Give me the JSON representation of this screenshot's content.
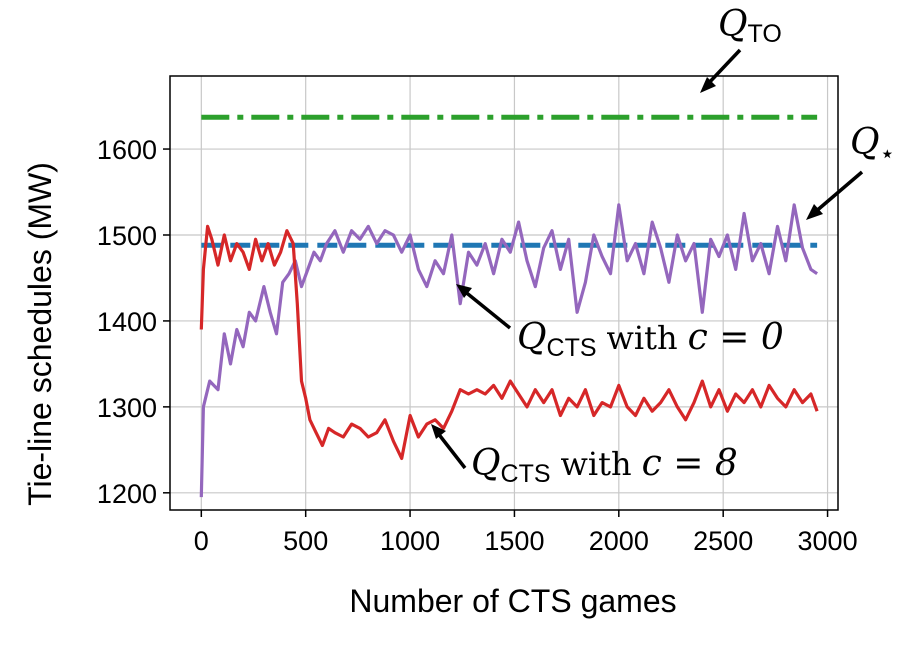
{
  "chart_data": {
    "type": "line",
    "xlabel": "Number of CTS games",
    "ylabel": "Tie-line schedules (MW)",
    "xlim": [
      -150,
      3050
    ],
    "ylim": [
      1180,
      1685
    ],
    "xticks": [
      0,
      500,
      1000,
      1500,
      2000,
      2500,
      3000
    ],
    "yticks": [
      1200,
      1300,
      1400,
      1500,
      1600
    ],
    "grid": true,
    "reference_lines": [
      {
        "name": "Q_TO",
        "y": 1637,
        "x_range": [
          0,
          2950
        ],
        "color": "#2ca02c",
        "style": "dash-dot"
      },
      {
        "name": "Q_star",
        "y": 1488,
        "x_range": [
          0,
          2950
        ],
        "color": "#1f77b4",
        "style": "dashed"
      }
    ],
    "series": [
      {
        "name": "Q_CTS with c = 0",
        "color": "#9467bd",
        "x": [
          0,
          10,
          40,
          80,
          110,
          140,
          170,
          200,
          230,
          260,
          300,
          330,
          360,
          390,
          420,
          450,
          480,
          510,
          540,
          570,
          600,
          640,
          680,
          720,
          760,
          800,
          840,
          880,
          920,
          960,
          1000,
          1040,
          1080,
          1120,
          1160,
          1200,
          1240,
          1280,
          1320,
          1360,
          1400,
          1440,
          1480,
          1520,
          1560,
          1600,
          1640,
          1680,
          1720,
          1760,
          1800,
          1840,
          1880,
          1920,
          1960,
          2000,
          2040,
          2080,
          2120,
          2160,
          2200,
          2240,
          2280,
          2320,
          2360,
          2400,
          2440,
          2480,
          2520,
          2560,
          2600,
          2640,
          2680,
          2720,
          2760,
          2800,
          2840,
          2880,
          2920,
          2950
        ],
        "values": [
          1195,
          1300,
          1330,
          1320,
          1385,
          1350,
          1390,
          1370,
          1410,
          1400,
          1440,
          1410,
          1385,
          1445,
          1455,
          1470,
          1440,
          1460,
          1480,
          1470,
          1490,
          1505,
          1480,
          1505,
          1495,
          1510,
          1490,
          1505,
          1500,
          1480,
          1500,
          1460,
          1440,
          1470,
          1455,
          1500,
          1420,
          1480,
          1465,
          1490,
          1455,
          1495,
          1480,
          1515,
          1470,
          1440,
          1485,
          1505,
          1460,
          1495,
          1410,
          1445,
          1500,
          1475,
          1455,
          1535,
          1470,
          1490,
          1455,
          1515,
          1485,
          1445,
          1500,
          1470,
          1490,
          1410,
          1495,
          1475,
          1500,
          1460,
          1525,
          1470,
          1490,
          1455,
          1510,
          1470,
          1535,
          1485,
          1460,
          1455
        ]
      },
      {
        "name": "Q_CTS with c = 8",
        "color": "#d62728",
        "x": [
          0,
          10,
          30,
          50,
          80,
          110,
          140,
          170,
          200,
          230,
          260,
          290,
          320,
          350,
          380,
          410,
          440,
          460,
          480,
          500,
          520,
          550,
          580,
          610,
          640,
          680,
          720,
          760,
          800,
          840,
          880,
          920,
          960,
          1000,
          1040,
          1080,
          1120,
          1160,
          1200,
          1240,
          1280,
          1320,
          1360,
          1400,
          1440,
          1480,
          1520,
          1560,
          1600,
          1640,
          1680,
          1720,
          1760,
          1800,
          1840,
          1880,
          1920,
          1960,
          2000,
          2040,
          2080,
          2120,
          2160,
          2200,
          2240,
          2280,
          2320,
          2360,
          2400,
          2440,
          2480,
          2520,
          2560,
          2600,
          2640,
          2680,
          2720,
          2760,
          2800,
          2840,
          2880,
          2920,
          2950
        ],
        "values": [
          1390,
          1460,
          1510,
          1495,
          1465,
          1500,
          1470,
          1490,
          1480,
          1460,
          1495,
          1470,
          1490,
          1465,
          1480,
          1505,
          1490,
          1420,
          1330,
          1310,
          1285,
          1270,
          1255,
          1275,
          1270,
          1265,
          1280,
          1275,
          1265,
          1270,
          1285,
          1260,
          1240,
          1290,
          1265,
          1280,
          1285,
          1275,
          1295,
          1320,
          1315,
          1320,
          1315,
          1325,
          1310,
          1330,
          1315,
          1300,
          1320,
          1305,
          1320,
          1290,
          1310,
          1300,
          1320,
          1290,
          1305,
          1300,
          1325,
          1300,
          1290,
          1310,
          1295,
          1305,
          1320,
          1300,
          1285,
          1305,
          1330,
          1300,
          1320,
          1295,
          1315,
          1305,
          1320,
          1300,
          1325,
          1310,
          1300,
          1320,
          1305,
          1315,
          1295
        ]
      }
    ],
    "annotations": [
      {
        "base": "Q",
        "sub": "TO",
        "suffix": ""
      },
      {
        "base": "Q",
        "sub": "⋆",
        "suffix": ""
      },
      {
        "base": "Q",
        "sub": "CTS",
        "word": "with",
        "math": "c = 0"
      },
      {
        "base": "Q",
        "sub": "CTS",
        "word": "with",
        "math": "c = 8"
      }
    ]
  }
}
